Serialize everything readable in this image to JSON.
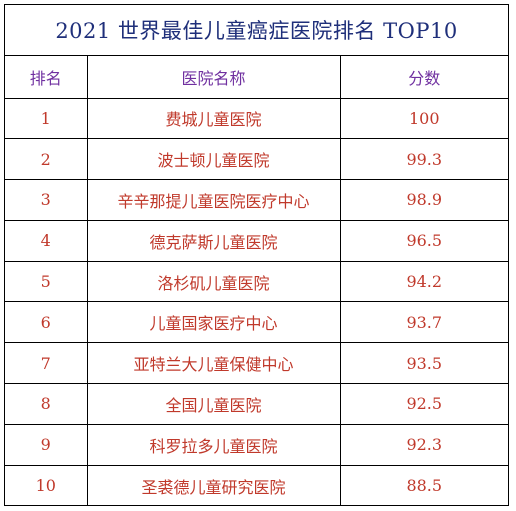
{
  "title": "2021 世界最佳儿童癌症医院排名 TOP10",
  "headers": {
    "rank": "排名",
    "name": "医院名称",
    "score": "分数"
  },
  "rows": [
    {
      "rank": "1",
      "name": "费城儿童医院",
      "score": "100"
    },
    {
      "rank": "2",
      "name": "波士顿儿童医院",
      "score": "99.3"
    },
    {
      "rank": "3",
      "name": "辛辛那提儿童医院医疗中心",
      "score": "98.9"
    },
    {
      "rank": "4",
      "name": "德克萨斯儿童医院",
      "score": "96.5"
    },
    {
      "rank": "5",
      "name": "洛杉矶儿童医院",
      "score": "94.2"
    },
    {
      "rank": "6",
      "name": "儿童国家医疗中心",
      "score": "93.7"
    },
    {
      "rank": "7",
      "name": "亚特兰大儿童保健中心",
      "score": "93.5"
    },
    {
      "rank": "8",
      "name": "全国儿童医院",
      "score": "92.5"
    },
    {
      "rank": "9",
      "name": "科罗拉多儿童医院",
      "score": "92.3"
    },
    {
      "rank": "10",
      "name": "圣裘德儿童研究医院",
      "score": "88.5"
    }
  ],
  "colors": {
    "title": "#1f2f7a",
    "header": "#7030a0",
    "cell": "#c0392b"
  }
}
